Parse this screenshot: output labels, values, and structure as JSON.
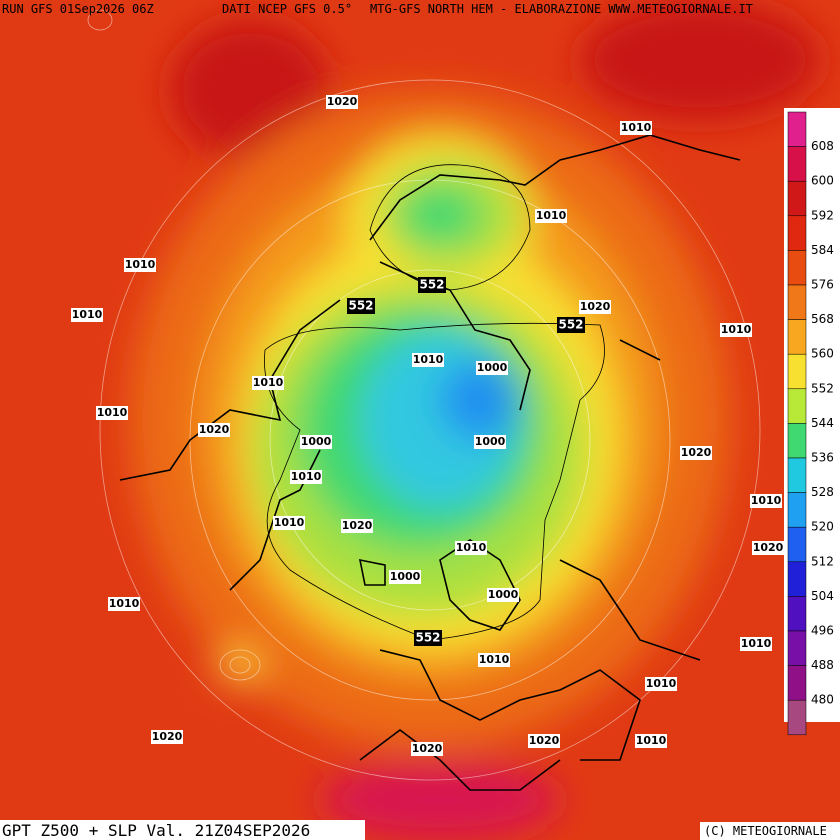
{
  "header": {
    "run": "RUN GFS 01Sep2026 06Z",
    "source": "DATI NCEP GFS 0.5°",
    "credit": "MTG-GFS NORTH HEM - ELABORAZIONE WWW.METEOGIORNALE.IT"
  },
  "footer": {
    "title": "GPT Z500 + SLP Val. 21Z04SEP2026",
    "copyright": "(C) METEOGIORNALE"
  },
  "colorbar": {
    "labels": [
      608,
      600,
      592,
      584,
      576,
      568,
      560,
      552,
      544,
      536,
      528,
      520,
      512,
      504,
      496,
      488,
      480
    ],
    "colors": [
      "#e0208c",
      "#d8104a",
      "#d01818",
      "#e02810",
      "#e84c10",
      "#f07818",
      "#f8a820",
      "#f8e030",
      "#b8e838",
      "#40d870",
      "#20c8e0",
      "#20a0f0",
      "#2060f0",
      "#2020d8",
      "#5010c0",
      "#7810a8",
      "#901088",
      "#a84880"
    ]
  },
  "map": {
    "isobar_labels": [
      "1020",
      "1010",
      "1010",
      "1010",
      "1010",
      "1020",
      "1010",
      "1010",
      "1000",
      "1010",
      "1010",
      "1020",
      "1000",
      "1000",
      "1010",
      "1020",
      "1010",
      "1010",
      "1020",
      "1020",
      "1010",
      "1000",
      "1000",
      "1010",
      "1010",
      "1010",
      "1010",
      "1020",
      "1020",
      "1020",
      "1010"
    ],
    "z500_labels": [
      "552",
      "552",
      "552",
      "552"
    ]
  }
}
